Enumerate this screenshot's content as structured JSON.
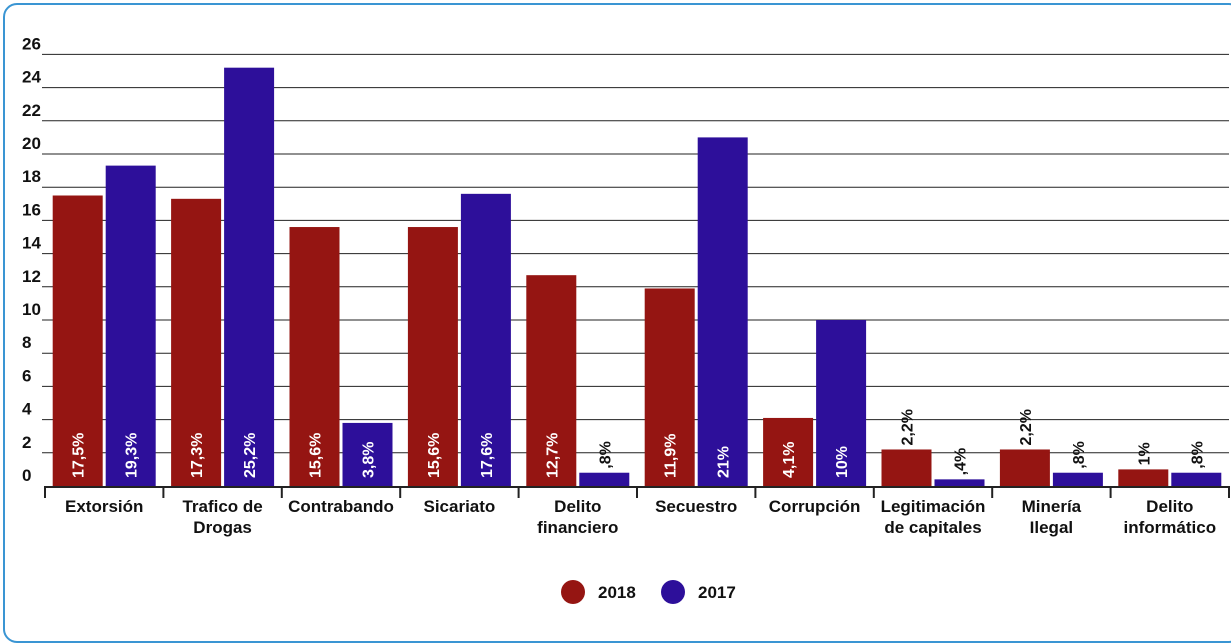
{
  "chart_data": {
    "type": "bar",
    "title": "",
    "xlabel": "",
    "ylabel": "",
    "ylim": [
      0,
      26
    ],
    "yticks": [
      0,
      2,
      4,
      6,
      8,
      10,
      12,
      14,
      16,
      18,
      20,
      22,
      24,
      26
    ],
    "grid": true,
    "legend_position": "bottom",
    "categories": [
      [
        "Extorsión"
      ],
      [
        "Trafico de",
        "Drogas"
      ],
      [
        "Contrabando"
      ],
      [
        "Sicariato"
      ],
      [
        "Delito",
        "financiero"
      ],
      [
        "Secuestro"
      ],
      [
        "Corrupción"
      ],
      [
        "Legitimación",
        "de capitales"
      ],
      [
        "Minería",
        "Ilegal"
      ],
      [
        "Delito",
        "informático"
      ]
    ],
    "series": [
      {
        "name": "2018",
        "color": "#951512",
        "values": [
          17.5,
          17.3,
          15.6,
          15.6,
          12.7,
          11.9,
          4.1,
          2.2,
          2.2,
          1
        ],
        "labels": [
          "17,5%",
          "17,3%",
          "15,6%",
          "15,6%",
          "12,7%",
          "11,9%",
          "4,1%",
          "2,2%",
          "2,2%",
          "1%"
        ]
      },
      {
        "name": "2017",
        "color": "#2d0f9a",
        "values": [
          19.3,
          25.2,
          3.8,
          17.6,
          0.8,
          21,
          10,
          0.4,
          0.8,
          0.8
        ],
        "labels": [
          "19,3%",
          "25,2%",
          "3,8%",
          "17,6%",
          ",8%",
          "21%",
          "10%",
          ",4%",
          ",8%",
          ",8%"
        ]
      }
    ]
  }
}
